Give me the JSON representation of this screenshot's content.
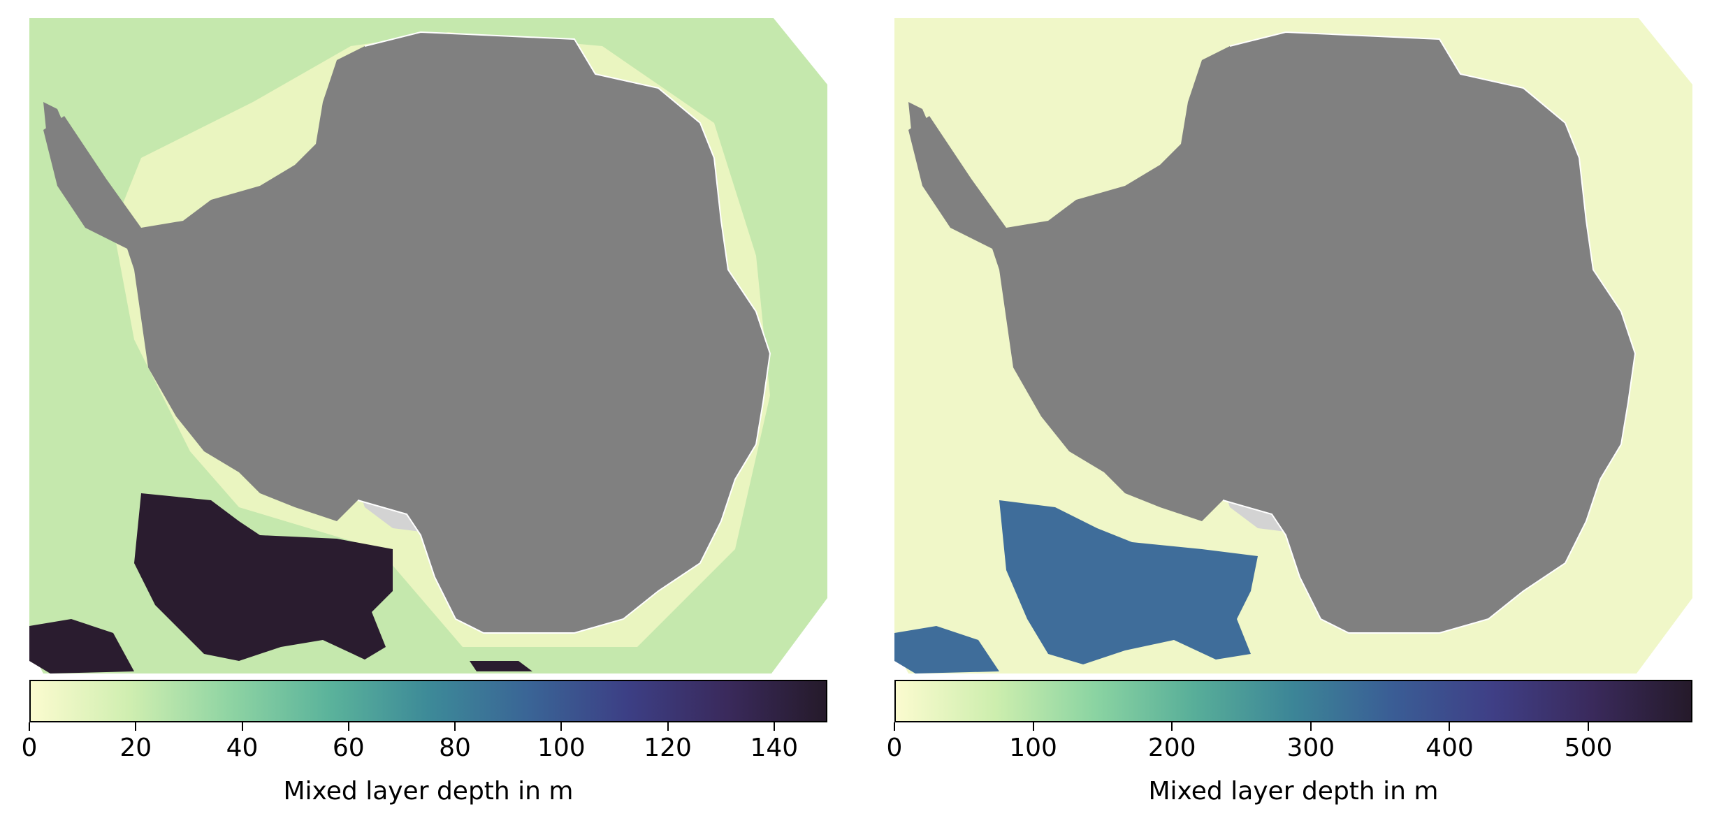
{
  "panels": [
    {
      "id": "left",
      "colorbar": {
        "label": "Mixed layer depth in m",
        "vmin": 0,
        "vmax": 150,
        "ticks": [
          0,
          20,
          40,
          60,
          80,
          100,
          120,
          140
        ],
        "tick_labels": [
          "0",
          "20",
          "40",
          "60",
          "80",
          "100",
          "120",
          "140"
        ],
        "gradient": [
          "#fbfbcf",
          "#cfeeb0",
          "#8fd4a3",
          "#5bb39b",
          "#3d8a98",
          "#3a6596",
          "#3c3f85",
          "#3a2a5c",
          "#251a2a"
        ]
      },
      "colors": {
        "ocean_base": "#c5e8ad",
        "ocean_near_land": "#eaf5c0",
        "deep_patch": "#2a1c2f",
        "teal_patch": "#6cc29f"
      }
    },
    {
      "id": "right",
      "colorbar": {
        "label": "Mixed layer depth in m",
        "vmin": 0,
        "vmax": 575,
        "ticks": [
          0,
          100,
          200,
          300,
          400,
          500
        ],
        "tick_labels": [
          "0",
          "100",
          "200",
          "300",
          "400",
          "500"
        ],
        "gradient": [
          "#fbfbcf",
          "#cdeeae",
          "#8bd4a2",
          "#58ae99",
          "#3c8597",
          "#3a5d95",
          "#3f3f86",
          "#3a2a5c",
          "#251a2a"
        ]
      },
      "colors": {
        "ocean_base": "#f0f7c8",
        "ocean_near_land": "#f5f9cf",
        "deep_patch": "#3f6d9a",
        "teal_patch": "#4b9599"
      }
    }
  ],
  "land_colors": {
    "continent": "#808080",
    "ice_shelf": "#d3d3d3",
    "coastline": "#ffffff"
  }
}
